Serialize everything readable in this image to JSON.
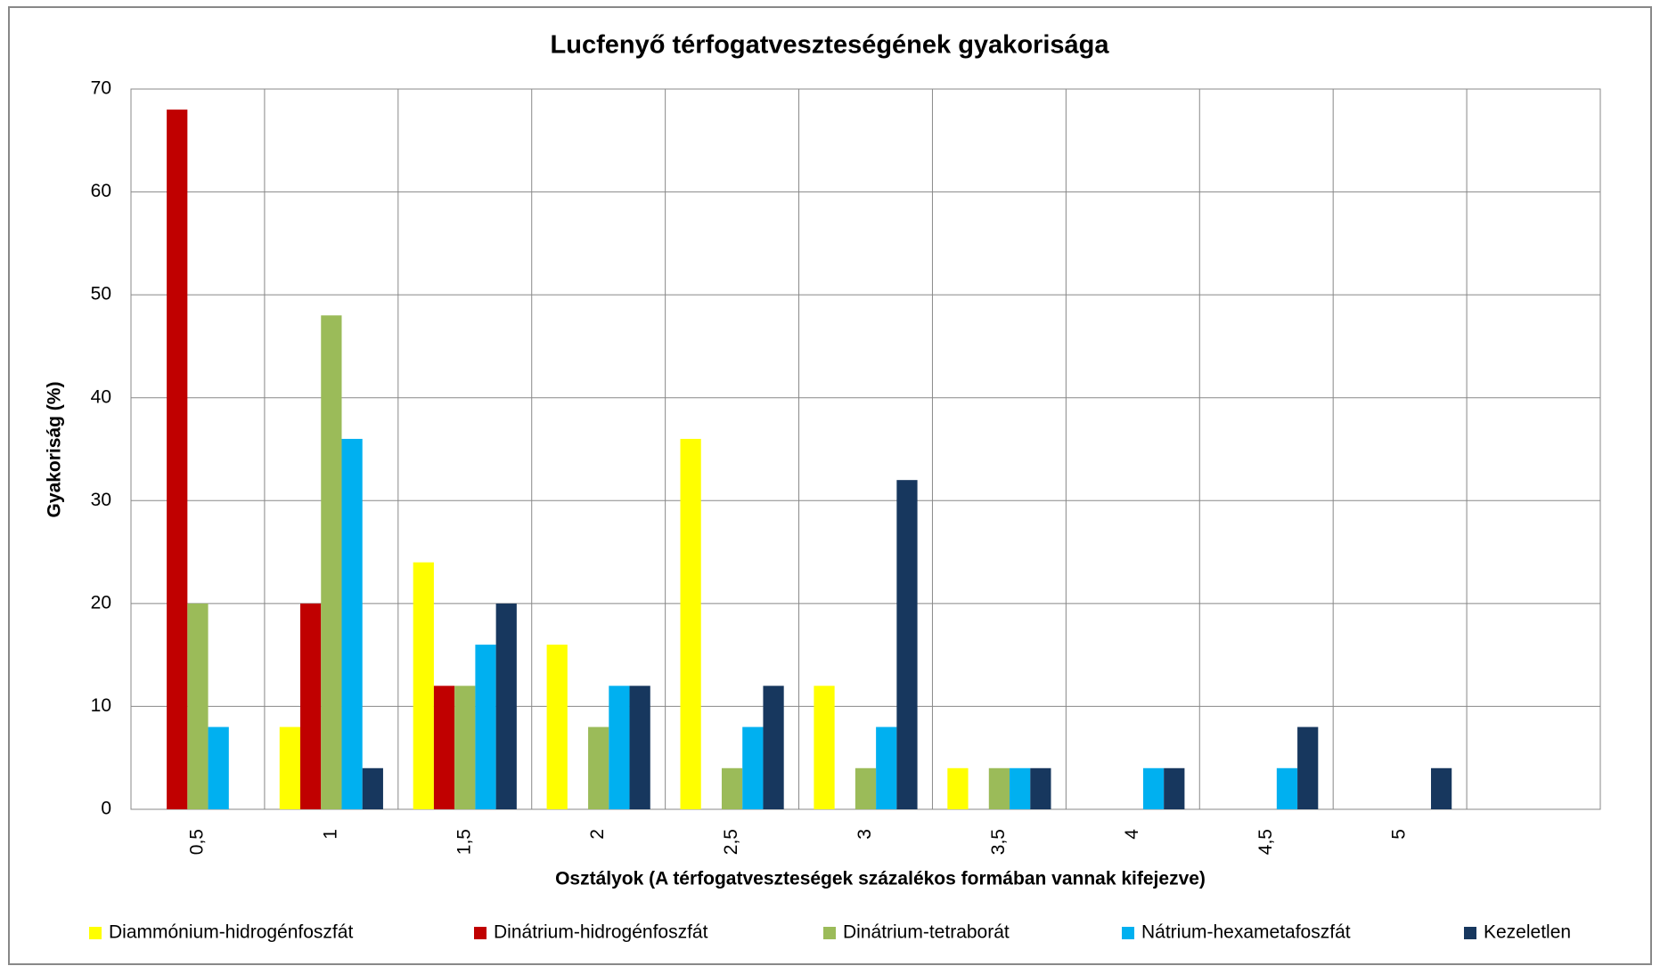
{
  "chart_data": {
    "type": "bar",
    "title": "Lucfenyő térfogatveszteségének gyakorisága",
    "x_label": "Osztályok (A térfogatveszteségek százalékos formában vannak kifejezve)",
    "y_label": "Gyakoriság (%)",
    "categories": [
      "0,5",
      "1",
      "1,5",
      "2",
      "2,5",
      "3",
      "3,5",
      "4",
      "4,5",
      "5",
      null
    ],
    "series": [
      {
        "name": "Diammónium-hidrogénfoszfát",
        "color": "#ffff00",
        "values": [
          0,
          8,
          24,
          16,
          36,
          12,
          4,
          0,
          0,
          0,
          null
        ]
      },
      {
        "name": "Dinátrium-hidrogénfoszfát",
        "color": "#c00000",
        "values": [
          68,
          20,
          12,
          0,
          0,
          0,
          0,
          0,
          0,
          0,
          null
        ]
      },
      {
        "name": "Dinátrium-tetraborát",
        "color": "#9bbb59",
        "values": [
          20,
          48,
          12,
          8,
          4,
          4,
          4,
          0,
          0,
          0,
          null
        ]
      },
      {
        "name": "Nátrium-hexametafoszfát",
        "color": "#00b0f0",
        "values": [
          8,
          36,
          16,
          12,
          8,
          8,
          4,
          4,
          4,
          0,
          null
        ]
      },
      {
        "name": "Kezeletlen",
        "color": "#17375e",
        "values": [
          0,
          4,
          20,
          12,
          12,
          32,
          4,
          4,
          8,
          4,
          null
        ]
      }
    ],
    "ylim": [
      0,
      70
    ],
    "yticks": [
      0,
      10,
      20,
      30,
      40,
      50,
      60,
      70
    ],
    "grid": true,
    "legend": "bottom"
  }
}
